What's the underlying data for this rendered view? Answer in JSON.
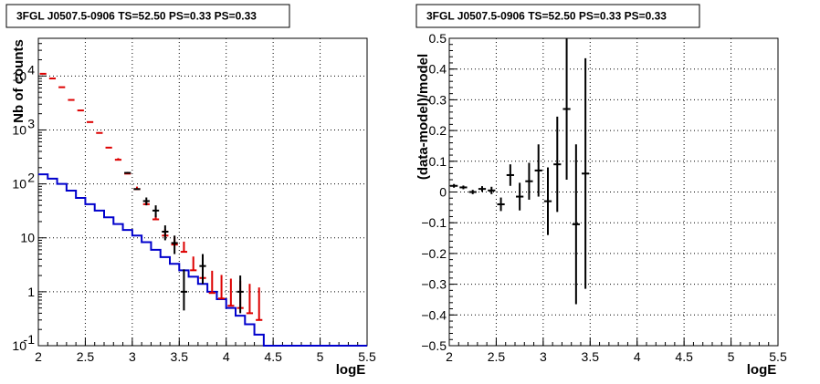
{
  "chart_data": [
    {
      "type": "histogram",
      "title": "3FGL J0507.5-0906 TS=52.50 PS=0.33 PS=0.33",
      "xlabel": "logE",
      "ylabel": "Nb of counts",
      "xlim": [
        2,
        5.5
      ],
      "ylim": [
        0.1,
        50000
      ],
      "yscale": "log",
      "grid": true,
      "x_ticks": [
        "2",
        "2.5",
        "3",
        "3.5",
        "4",
        "4.5",
        "5",
        "5.5"
      ],
      "y_ticks": [
        {
          "value": 0.1,
          "label": "10",
          "exp": "-1"
        },
        {
          "value": 1,
          "label": "1",
          "exp": ""
        },
        {
          "value": 10,
          "label": "10",
          "exp": ""
        },
        {
          "value": 100,
          "label": "10",
          "exp": "2"
        },
        {
          "value": 1000,
          "label": "10",
          "exp": "3"
        },
        {
          "value": 10000,
          "label": "10",
          "exp": "4"
        }
      ],
      "bin_edges": [
        2.0,
        2.1,
        2.2,
        2.3,
        2.4,
        2.5,
        2.6,
        2.7,
        2.8,
        2.9,
        3.0,
        3.1,
        3.2,
        3.3,
        3.4,
        3.5,
        3.6,
        3.7,
        3.8,
        3.9,
        4.0,
        4.1,
        4.2,
        4.3,
        4.4,
        4.5,
        5.5
      ],
      "series": [
        {
          "kind": "step",
          "color": "#0000cc",
          "values": [
            150,
            125,
            100,
            75,
            55,
            42,
            32,
            24,
            18,
            14,
            11,
            8.3,
            6.0,
            4.4,
            3.3,
            2.5,
            1.9,
            1.4,
            1.0,
            0.73,
            0.5,
            0.36,
            0.25,
            0.16,
            0.1,
            0.1
          ]
        },
        {
          "kind": "errorbar",
          "color": "#dd0000",
          "x": [
            2.05,
            2.15,
            2.25,
            2.35,
            2.45,
            2.55,
            2.65,
            2.75,
            2.85,
            2.95,
            3.05,
            3.15,
            3.25,
            3.35,
            3.45,
            3.55,
            3.65,
            3.75,
            3.85,
            3.95,
            4.05,
            4.15,
            4.25,
            4.35
          ],
          "y": [
            11000,
            9000,
            6200,
            3600,
            2300,
            1400,
            880,
            470,
            280,
            155,
            80,
            42,
            22,
            11,
            7.5,
            5.5,
            2.5,
            1.8,
            0.95,
            0.75,
            0.55,
            0.5,
            0.4,
            0.3
          ],
          "yerr_lo": [
            0,
            0,
            0,
            0,
            0,
            0,
            0,
            0,
            0,
            0,
            0,
            0,
            0,
            0,
            0,
            0,
            0,
            0,
            0,
            0,
            0,
            0,
            0,
            0
          ],
          "yerr_hi": [
            0,
            0,
            0,
            0,
            0,
            0,
            0,
            0,
            20,
            12,
            9,
            6,
            5,
            3.5,
            3,
            3,
            2,
            2,
            1.5,
            1.3,
            1.2,
            1.1,
            1,
            0.9
          ]
        },
        {
          "kind": "errorbar",
          "color": "#000000",
          "x": [
            2.95,
            3.05,
            3.15,
            3.25,
            3.35,
            3.45,
            3.55,
            3.75,
            4.15
          ],
          "y": [
            160,
            80,
            48,
            32,
            13,
            8,
            1.0,
            3.0,
            1.0
          ],
          "yerr_lo": [
            0,
            0,
            8,
            8,
            4,
            3,
            0.55,
            1.6,
            0.6
          ],
          "yerr_hi": [
            0,
            0,
            8,
            8,
            4,
            3,
            1.6,
            2.0,
            1.0
          ]
        }
      ]
    },
    {
      "type": "errorbar",
      "title": "3FGL J0507.5-0906 TS=52.50 PS=0.33 PS=0.33",
      "xlabel": "logE",
      "ylabel": "(data-model)/model",
      "xlim": [
        2,
        5.5
      ],
      "ylim": [
        -0.5,
        0.5
      ],
      "grid": true,
      "x_ticks": [
        "2",
        "2.5",
        "3",
        "3.5",
        "4",
        "4.5",
        "5",
        "5.5"
      ],
      "y_ticks": [
        "−0.5",
        "−0.4",
        "−0.3",
        "−0.2",
        "−0.1",
        "0",
        "0.1",
        "0.2",
        "0.3",
        "0.4",
        "0.5"
      ],
      "series": [
        {
          "color": "#000000",
          "x": [
            2.05,
            2.15,
            2.25,
            2.35,
            2.45,
            2.55,
            2.65,
            2.75,
            2.85,
            2.95,
            3.05,
            3.15,
            3.25,
            3.35,
            3.45
          ],
          "y": [
            0.02,
            0.015,
            0.0,
            0.01,
            0.005,
            -0.04,
            0.055,
            -0.015,
            0.035,
            0.07,
            -0.03,
            0.09,
            0.27,
            -0.105,
            0.06
          ],
          "yerr": [
            0.006,
            0.006,
            0.007,
            0.009,
            0.012,
            0.022,
            0.035,
            0.045,
            0.06,
            0.085,
            0.11,
            0.155,
            0.23,
            0.26,
            0.375
          ]
        }
      ]
    }
  ]
}
